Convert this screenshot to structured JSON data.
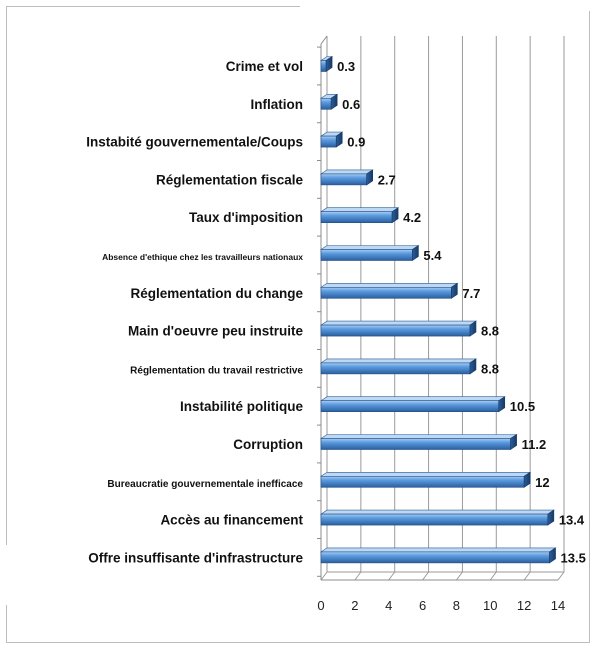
{
  "chart_data": {
    "type": "bar",
    "orientation": "horizontal",
    "title": "",
    "xlabel": "",
    "ylabel": "",
    "xlim": [
      0,
      14
    ],
    "x_ticks": [
      "0",
      "2",
      "4",
      "6",
      "8",
      "10",
      "12",
      "14"
    ],
    "grid": "vertical",
    "legend": "none",
    "bar_color": "#3f7fc4",
    "categories": [
      "Crime et vol",
      "Inflation",
      "Instabité gouvernementale/Coups",
      "Réglementation fiscale",
      "Taux d'imposition",
      "Absence d'ethique chez les travailleurs nationaux",
      "Réglementation du change",
      "Main d'oeuvre peu instruite",
      "Réglementation du travail restrictive",
      "Instabilité politique",
      "Corruption",
      "Bureaucratie gouvernementale inefficace",
      "Accès au financement",
      "Offre insuffisante d'infrastructure"
    ],
    "values": [
      0.3,
      0.6,
      0.9,
      2.7,
      4.2,
      5.4,
      7.7,
      8.8,
      8.8,
      10.5,
      11.2,
      12,
      13.4,
      13.5
    ],
    "value_labels": [
      "0.3",
      "0.6",
      "0.9",
      "2.7",
      "4.2",
      "5.4",
      "7.7",
      "8.8",
      "8.8",
      "10.5",
      "11.2",
      "12",
      "13.4",
      "13.5"
    ]
  }
}
